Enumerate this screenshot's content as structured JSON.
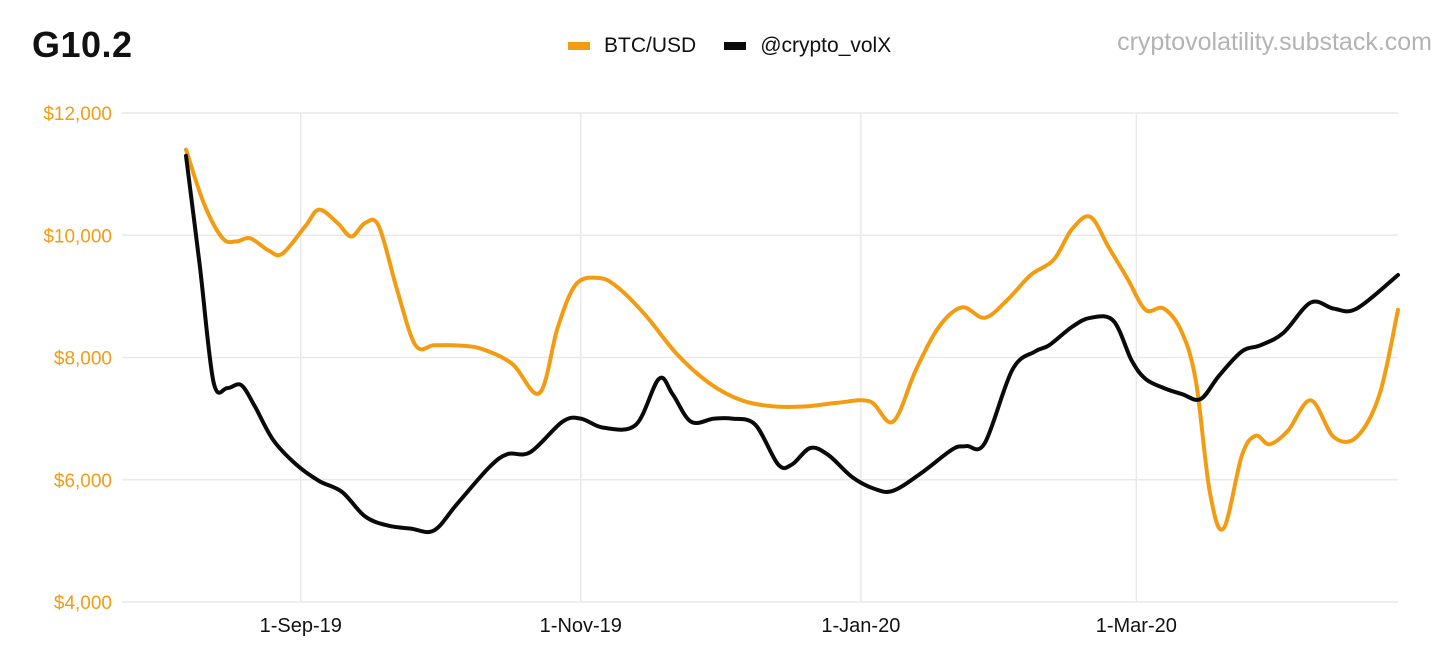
{
  "title": "G10.2",
  "watermark": "cryptovolatility.substack.com",
  "colors": {
    "btc": "#f39c12",
    "volx": "#0a0a0a",
    "grid": "#e9e9e9",
    "ytick": "#f39c12"
  },
  "chart_data": {
    "type": "line",
    "y_tick_labels": [
      "$4,000",
      "$6,000",
      "$8,000",
      "$10,000",
      "$12,000"
    ],
    "y_tick_values": [
      4000,
      6000,
      8000,
      10000,
      12000
    ],
    "ylim": [
      4000,
      12000
    ],
    "x_tick_labels": [
      "1-Sep-19",
      "1-Nov-19",
      "1-Jan-20",
      "1-Mar-20"
    ],
    "x_tick_dates": [
      "2019-09-01",
      "2019-11-01",
      "2020-01-01",
      "2020-03-01"
    ],
    "xlim": [
      "2019-08-07",
      "2020-04-27"
    ],
    "grid": true,
    "legend_position": "top-center",
    "series": [
      {
        "name": "BTC/USD",
        "color": "#f39c12",
        "points": [
          [
            "2019-08-07",
            11400
          ],
          [
            "2019-08-11",
            10500
          ],
          [
            "2019-08-15",
            9950
          ],
          [
            "2019-08-18",
            9900
          ],
          [
            "2019-08-21",
            9950
          ],
          [
            "2019-08-25",
            9750
          ],
          [
            "2019-08-28",
            9700
          ],
          [
            "2019-09-02",
            10150
          ],
          [
            "2019-09-05",
            10420
          ],
          [
            "2019-09-09",
            10200
          ],
          [
            "2019-09-12",
            9980
          ],
          [
            "2019-09-15",
            10200
          ],
          [
            "2019-09-18",
            10150
          ],
          [
            "2019-09-22",
            9100
          ],
          [
            "2019-09-26",
            8200
          ],
          [
            "2019-09-30",
            8200
          ],
          [
            "2019-10-04",
            8200
          ],
          [
            "2019-10-10",
            8150
          ],
          [
            "2019-10-17",
            7900
          ],
          [
            "2019-10-23",
            7420
          ],
          [
            "2019-10-27",
            8500
          ],
          [
            "2019-10-31",
            9200
          ],
          [
            "2019-11-05",
            9300
          ],
          [
            "2019-11-09",
            9150
          ],
          [
            "2019-11-15",
            8700
          ],
          [
            "2019-11-22",
            8050
          ],
          [
            "2019-11-29",
            7580
          ],
          [
            "2019-12-06",
            7300
          ],
          [
            "2019-12-13",
            7200
          ],
          [
            "2019-12-20",
            7200
          ],
          [
            "2019-12-27",
            7260
          ],
          [
            "2020-01-03",
            7280
          ],
          [
            "2020-01-08",
            6950
          ],
          [
            "2020-01-13",
            7800
          ],
          [
            "2020-01-18",
            8500
          ],
          [
            "2020-01-23",
            8820
          ],
          [
            "2020-01-28",
            8650
          ],
          [
            "2020-02-02",
            8950
          ],
          [
            "2020-02-07",
            9350
          ],
          [
            "2020-02-12",
            9600
          ],
          [
            "2020-02-16",
            10100
          ],
          [
            "2020-02-20",
            10300
          ],
          [
            "2020-02-24",
            9800
          ],
          [
            "2020-02-28",
            9300
          ],
          [
            "2020-03-03",
            8780
          ],
          [
            "2020-03-07",
            8800
          ],
          [
            "2020-03-11",
            8400
          ],
          [
            "2020-03-14",
            7600
          ],
          [
            "2020-03-17",
            5800
          ],
          [
            "2020-03-20",
            5200
          ],
          [
            "2020-03-24",
            6400
          ],
          [
            "2020-03-27",
            6720
          ],
          [
            "2020-03-30",
            6580
          ],
          [
            "2020-04-03",
            6800
          ],
          [
            "2020-04-08",
            7300
          ],
          [
            "2020-04-13",
            6700
          ],
          [
            "2020-04-18",
            6700
          ],
          [
            "2020-04-23",
            7400
          ],
          [
            "2020-04-27",
            8780
          ]
        ]
      },
      {
        "name": "@crypto_volX",
        "color": "#0a0a0a",
        "points": [
          [
            "2019-08-07",
            11300
          ],
          [
            "2019-08-10",
            9500
          ],
          [
            "2019-08-13",
            7600
          ],
          [
            "2019-08-16",
            7500
          ],
          [
            "2019-08-19",
            7550
          ],
          [
            "2019-08-22",
            7200
          ],
          [
            "2019-08-26",
            6650
          ],
          [
            "2019-08-31",
            6250
          ],
          [
            "2019-09-05",
            5980
          ],
          [
            "2019-09-10",
            5800
          ],
          [
            "2019-09-15",
            5400
          ],
          [
            "2019-09-20",
            5250
          ],
          [
            "2019-09-25",
            5200
          ],
          [
            "2019-09-30",
            5170
          ],
          [
            "2019-10-05",
            5600
          ],
          [
            "2019-10-12",
            6200
          ],
          [
            "2019-10-16",
            6420
          ],
          [
            "2019-10-21",
            6450
          ],
          [
            "2019-10-28",
            6950
          ],
          [
            "2019-11-01",
            7000
          ],
          [
            "2019-11-06",
            6850
          ],
          [
            "2019-11-13",
            6900
          ],
          [
            "2019-11-18",
            7650
          ],
          [
            "2019-11-21",
            7400
          ],
          [
            "2019-11-25",
            6950
          ],
          [
            "2019-11-30",
            7000
          ],
          [
            "2019-12-04",
            7000
          ],
          [
            "2019-12-09",
            6900
          ],
          [
            "2019-12-14",
            6250
          ],
          [
            "2019-12-17",
            6250
          ],
          [
            "2019-12-21",
            6520
          ],
          [
            "2019-12-25",
            6400
          ],
          [
            "2019-12-30",
            6050
          ],
          [
            "2020-01-04",
            5850
          ],
          [
            "2020-01-08",
            5820
          ],
          [
            "2020-01-14",
            6100
          ],
          [
            "2020-01-21",
            6500
          ],
          [
            "2020-01-24",
            6550
          ],
          [
            "2020-01-28",
            6600
          ],
          [
            "2020-02-03",
            7800
          ],
          [
            "2020-02-08",
            8100
          ],
          [
            "2020-02-11",
            8200
          ],
          [
            "2020-02-16",
            8500
          ],
          [
            "2020-02-20",
            8650
          ],
          [
            "2020-02-25",
            8600
          ],
          [
            "2020-02-29",
            7950
          ],
          [
            "2020-03-03",
            7650
          ],
          [
            "2020-03-07",
            7500
          ],
          [
            "2020-03-11",
            7400
          ],
          [
            "2020-03-15",
            7320
          ],
          [
            "2020-03-19",
            7700
          ],
          [
            "2020-03-24",
            8100
          ],
          [
            "2020-03-28",
            8200
          ],
          [
            "2020-04-02",
            8400
          ],
          [
            "2020-04-08",
            8900
          ],
          [
            "2020-04-13",
            8800
          ],
          [
            "2020-04-18",
            8800
          ],
          [
            "2020-04-27",
            9350
          ]
        ]
      }
    ]
  }
}
